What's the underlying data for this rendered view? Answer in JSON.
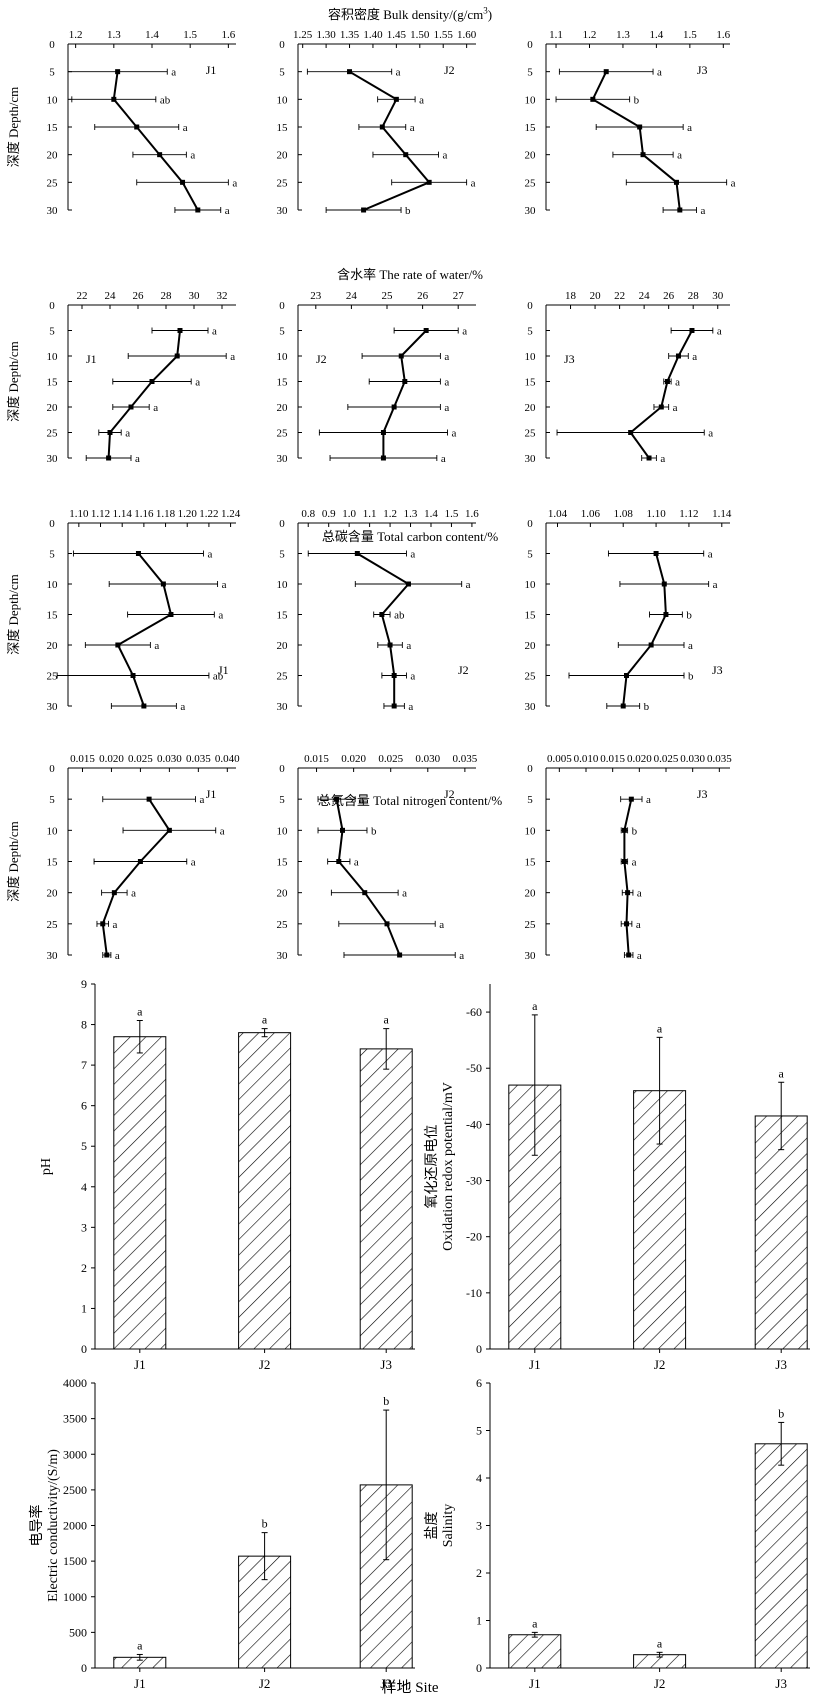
{
  "footer_xlabel": "样地 Site",
  "chart_data": [
    {
      "id": "row1",
      "type": "line",
      "orientation": "depth-profile",
      "title": "容积密度 Bulk density/(g/cm",
      "title_sup": "3",
      "title_tail": ")",
      "ylabel": "深度 Depth/cm",
      "ylim": [
        0,
        30
      ],
      "yticks": [
        0,
        5,
        10,
        15,
        20,
        25,
        30
      ],
      "panels": [
        {
          "site": "J1",
          "xlim": [
            1.18,
            1.62
          ],
          "xticks": [
            "1.2",
            "1.3",
            "1.4",
            "1.5",
            "1.6"
          ],
          "xtick_values": [
            1.2,
            1.3,
            1.4,
            1.5,
            1.6
          ],
          "points": [
            {
              "depth": 5,
              "x": 1.31,
              "err": 0.13,
              "letter": "a"
            },
            {
              "depth": 10,
              "x": 1.3,
              "err": 0.11,
              "letter": "ab"
            },
            {
              "depth": 15,
              "x": 1.36,
              "err": 0.11,
              "letter": "a"
            },
            {
              "depth": 20,
              "x": 1.42,
              "err": 0.07,
              "letter": "a"
            },
            {
              "depth": 25,
              "x": 1.48,
              "err": 0.12,
              "letter": "a"
            },
            {
              "depth": 30,
              "x": 1.52,
              "err": 0.06,
              "letter": "a"
            }
          ]
        },
        {
          "site": "J2",
          "xlim": [
            1.24,
            1.62
          ],
          "xticks": [
            "1.25",
            "1.30",
            "1.35",
            "1.40",
            "1.45",
            "1.50",
            "1.55",
            "1.60"
          ],
          "xtick_values": [
            1.25,
            1.3,
            1.35,
            1.4,
            1.45,
            1.5,
            1.55,
            1.6
          ],
          "points": [
            {
              "depth": 5,
              "x": 1.35,
              "err": 0.09,
              "letter": "a"
            },
            {
              "depth": 10,
              "x": 1.45,
              "err": 0.04,
              "letter": "a"
            },
            {
              "depth": 15,
              "x": 1.42,
              "err": 0.05,
              "letter": "a"
            },
            {
              "depth": 20,
              "x": 1.47,
              "err": 0.07,
              "letter": "a"
            },
            {
              "depth": 25,
              "x": 1.52,
              "err": 0.08,
              "letter": "a"
            },
            {
              "depth": 30,
              "x": 1.38,
              "err": 0.08,
              "letter": "b"
            }
          ]
        },
        {
          "site": "J3",
          "xlim": [
            1.07,
            1.62
          ],
          "xticks": [
            "1.1",
            "1.2",
            "1.3",
            "1.4",
            "1.5",
            "1.6"
          ],
          "xtick_values": [
            1.1,
            1.2,
            1.3,
            1.4,
            1.5,
            1.6
          ],
          "points": [
            {
              "depth": 5,
              "x": 1.25,
              "err": 0.14,
              "letter": "a"
            },
            {
              "depth": 10,
              "x": 1.21,
              "err": 0.11,
              "letter": "b"
            },
            {
              "depth": 15,
              "x": 1.35,
              "err": 0.13,
              "letter": "a"
            },
            {
              "depth": 20,
              "x": 1.36,
              "err": 0.09,
              "letter": "a"
            },
            {
              "depth": 25,
              "x": 1.46,
              "err": 0.15,
              "letter": "a"
            },
            {
              "depth": 30,
              "x": 1.47,
              "err": 0.05,
              "letter": "a"
            }
          ]
        }
      ]
    },
    {
      "id": "row2",
      "type": "line",
      "orientation": "depth-profile",
      "title": "含水率 The rate of water/%",
      "ylabel": "深度 Depth/cm",
      "ylim": [
        0,
        30
      ],
      "yticks": [
        0,
        5,
        10,
        15,
        20,
        25,
        30
      ],
      "panels": [
        {
          "site": "J1",
          "xlim": [
            21,
            33
          ],
          "xticks": [
            "22",
            "24",
            "26",
            "28",
            "30",
            "32"
          ],
          "xtick_values": [
            22,
            24,
            26,
            28,
            30,
            32
          ],
          "points": [
            {
              "depth": 5,
              "x": 29.0,
              "err": 2.0,
              "letter": "a"
            },
            {
              "depth": 10,
              "x": 28.8,
              "err": 3.5,
              "letter": "a"
            },
            {
              "depth": 15,
              "x": 27.0,
              "err": 2.8,
              "letter": "a"
            },
            {
              "depth": 20,
              "x": 25.5,
              "err": 1.3,
              "letter": "a"
            },
            {
              "depth": 25,
              "x": 24.0,
              "err": 0.8,
              "letter": "a"
            },
            {
              "depth": 30,
              "x": 23.9,
              "err": 1.6,
              "letter": "a"
            }
          ]
        },
        {
          "site": "J2",
          "xlim": [
            22.5,
            27.5
          ],
          "xticks": [
            "23",
            "24",
            "25",
            "26",
            "27"
          ],
          "xtick_values": [
            23,
            24,
            25,
            26,
            27
          ],
          "points": [
            {
              "depth": 5,
              "x": 26.1,
              "err": 0.9,
              "letter": "a"
            },
            {
              "depth": 10,
              "x": 25.4,
              "err": 1.1,
              "letter": "a"
            },
            {
              "depth": 15,
              "x": 25.5,
              "err": 1.0,
              "letter": "a"
            },
            {
              "depth": 20,
              "x": 25.2,
              "err": 1.3,
              "letter": "a"
            },
            {
              "depth": 25,
              "x": 24.9,
              "err": 1.8,
              "letter": "a"
            },
            {
              "depth": 30,
              "x": 24.9,
              "err": 1.5,
              "letter": "a"
            }
          ]
        },
        {
          "site": "J3",
          "xlim": [
            16,
            31
          ],
          "xticks": [
            "18",
            "20",
            "22",
            "24",
            "26",
            "28",
            "30"
          ],
          "xtick_values": [
            18,
            20,
            22,
            24,
            26,
            28,
            30
          ],
          "points": [
            {
              "depth": 5,
              "x": 27.9,
              "err": 1.7,
              "letter": "a"
            },
            {
              "depth": 10,
              "x": 26.8,
              "err": 0.8,
              "letter": "a"
            },
            {
              "depth": 15,
              "x": 25.9,
              "err": 0.3,
              "letter": "a"
            },
            {
              "depth": 20,
              "x": 25.4,
              "err": 0.6,
              "letter": "a"
            },
            {
              "depth": 25,
              "x": 22.9,
              "err": 6.0,
              "letter": "a"
            },
            {
              "depth": 30,
              "x": 24.4,
              "err": 0.6,
              "letter": "a"
            }
          ]
        }
      ]
    },
    {
      "id": "row3",
      "type": "line",
      "orientation": "depth-profile",
      "title": "总碳含量 Total carbon content/%",
      "ylabel": "深度 Depth/cm",
      "ylim": [
        0,
        30
      ],
      "yticks": [
        0,
        5,
        10,
        15,
        20,
        25,
        30
      ],
      "panels": [
        {
          "site": "J1",
          "xlim": [
            1.09,
            1.245
          ],
          "xticks": [
            "1.10",
            "1.12",
            "1.14",
            "1.16",
            "1.18",
            "1.20",
            "1.22",
            "1.24"
          ],
          "xtick_values": [
            1.1,
            1.12,
            1.14,
            1.16,
            1.18,
            1.2,
            1.22,
            1.24
          ],
          "points": [
            {
              "depth": 5,
              "x": 1.155,
              "err": 0.06,
              "letter": "a"
            },
            {
              "depth": 10,
              "x": 1.178,
              "err": 0.05,
              "letter": "a"
            },
            {
              "depth": 15,
              "x": 1.185,
              "err": 0.04,
              "letter": "a"
            },
            {
              "depth": 20,
              "x": 1.136,
              "err": 0.03,
              "letter": "a"
            },
            {
              "depth": 25,
              "x": 1.15,
              "err": 0.07,
              "letter": "ab"
            },
            {
              "depth": 30,
              "x": 1.16,
              "err": 0.03,
              "letter": "a"
            }
          ]
        },
        {
          "site": "J2",
          "xlim": [
            0.75,
            1.62
          ],
          "xticks": [
            "0.8",
            "0.9",
            "1.0",
            "1.1",
            "1.2",
            "1.3",
            "1.4",
            "1.5",
            "1.6"
          ],
          "xtick_values": [
            0.8,
            0.9,
            1.0,
            1.1,
            1.2,
            1.3,
            1.4,
            1.5,
            1.6
          ],
          "points": [
            {
              "depth": 5,
              "x": 1.04,
              "err": 0.24,
              "letter": "a"
            },
            {
              "depth": 10,
              "x": 1.29,
              "err": 0.26,
              "letter": "a"
            },
            {
              "depth": 15,
              "x": 1.16,
              "err": 0.04,
              "letter": "ab"
            },
            {
              "depth": 20,
              "x": 1.2,
              "err": 0.06,
              "letter": "a"
            },
            {
              "depth": 25,
              "x": 1.22,
              "err": 0.06,
              "letter": "a"
            },
            {
              "depth": 30,
              "x": 1.22,
              "err": 0.05,
              "letter": "a"
            }
          ]
        },
        {
          "site": "J3",
          "xlim": [
            1.033,
            1.145
          ],
          "xticks": [
            "1.04",
            "1.06",
            "1.08",
            "1.10",
            "1.12",
            "1.14"
          ],
          "xtick_values": [
            1.04,
            1.06,
            1.08,
            1.1,
            1.12,
            1.14
          ],
          "points": [
            {
              "depth": 5,
              "x": 1.1,
              "err": 0.029,
              "letter": "a"
            },
            {
              "depth": 10,
              "x": 1.105,
              "err": 0.027,
              "letter": "a"
            },
            {
              "depth": 15,
              "x": 1.106,
              "err": 0.01,
              "letter": "b"
            },
            {
              "depth": 20,
              "x": 1.097,
              "err": 0.02,
              "letter": "a"
            },
            {
              "depth": 25,
              "x": 1.082,
              "err": 0.035,
              "letter": "b"
            },
            {
              "depth": 30,
              "x": 1.08,
              "err": 0.01,
              "letter": "b"
            }
          ]
        }
      ]
    },
    {
      "id": "row4",
      "type": "line",
      "orientation": "depth-profile",
      "title": "总氮含量 Total nitrogen content/%",
      "ylabel": "深度 Depth/cm",
      "ylim": [
        0,
        30
      ],
      "yticks": [
        0,
        5,
        10,
        15,
        20,
        25,
        30
      ],
      "panels": [
        {
          "site": "J1",
          "xlim": [
            0.0125,
            0.0415
          ],
          "xticks": [
            "0.015",
            "0.020",
            "0.025",
            "0.030",
            "0.035",
            "0.040"
          ],
          "xtick_values": [
            0.015,
            0.02,
            0.025,
            0.03,
            0.035,
            0.04
          ],
          "points": [
            {
              "depth": 5,
              "x": 0.0265,
              "err": 0.008,
              "letter": "a"
            },
            {
              "depth": 10,
              "x": 0.03,
              "err": 0.008,
              "letter": "a"
            },
            {
              "depth": 15,
              "x": 0.025,
              "err": 0.008,
              "letter": "a"
            },
            {
              "depth": 20,
              "x": 0.0205,
              "err": 0.0022,
              "letter": "a"
            },
            {
              "depth": 25,
              "x": 0.0185,
              "err": 0.001,
              "letter": "a"
            },
            {
              "depth": 30,
              "x": 0.0192,
              "err": 0.0007,
              "letter": "a"
            }
          ]
        },
        {
          "site": "J2",
          "xlim": [
            0.0125,
            0.0365
          ],
          "xticks": [
            "0.015",
            "0.020",
            "0.025",
            "0.030",
            "0.035"
          ],
          "xtick_values": [
            0.015,
            0.02,
            0.025,
            0.03,
            0.035
          ],
          "points": [
            {
              "depth": 5,
              "x": 0.0177,
              "err": 0.0025,
              "letter": "a"
            },
            {
              "depth": 10,
              "x": 0.0185,
              "err": 0.0033,
              "letter": "b"
            },
            {
              "depth": 15,
              "x": 0.018,
              "err": 0.0015,
              "letter": "a"
            },
            {
              "depth": 20,
              "x": 0.0215,
              "err": 0.0045,
              "letter": "a"
            },
            {
              "depth": 25,
              "x": 0.0245,
              "err": 0.0065,
              "letter": "a"
            },
            {
              "depth": 30,
              "x": 0.0262,
              "err": 0.0075,
              "letter": "a"
            }
          ]
        },
        {
          "site": "J3",
          "xlim": [
            0.0025,
            0.037
          ],
          "xticks": [
            "0.005",
            "0.010",
            "0.015",
            "0.020",
            "0.025",
            "0.030",
            "0.035"
          ],
          "xtick_values": [
            0.005,
            0.01,
            0.015,
            0.02,
            0.025,
            0.03,
            0.035
          ],
          "points": [
            {
              "depth": 5,
              "x": 0.0185,
              "err": 0.002,
              "letter": "a"
            },
            {
              "depth": 10,
              "x": 0.0172,
              "err": 0.0006,
              "letter": "b"
            },
            {
              "depth": 15,
              "x": 0.0172,
              "err": 0.0006,
              "letter": "a"
            },
            {
              "depth": 20,
              "x": 0.0178,
              "err": 0.001,
              "letter": "a"
            },
            {
              "depth": 25,
              "x": 0.0176,
              "err": 0.001,
              "letter": "a"
            },
            {
              "depth": 30,
              "x": 0.018,
              "err": 0.0008,
              "letter": "a"
            }
          ]
        }
      ]
    },
    {
      "id": "ph",
      "type": "bar",
      "categories": [
        "J1",
        "J2",
        "J3"
      ],
      "values": [
        7.7,
        7.8,
        7.4
      ],
      "errors": [
        0.4,
        0.1,
        0.5
      ],
      "letters": [
        "a",
        "a",
        "a"
      ],
      "ylabel": "pH",
      "ylim": [
        0,
        9
      ],
      "yticks": [
        "0",
        "1",
        "2",
        "3",
        "4",
        "5",
        "6",
        "7",
        "8",
        "9"
      ],
      "ytick_values": [
        0,
        1,
        2,
        3,
        4,
        5,
        6,
        7,
        8,
        9
      ]
    },
    {
      "id": "orp",
      "type": "bar",
      "categories": [
        "J1",
        "J2",
        "J3"
      ],
      "values": [
        -47,
        -46,
        -41.5
      ],
      "errors": [
        12.5,
        9.5,
        6
      ],
      "letters": [
        "a",
        "a",
        "a"
      ],
      "ylabel_cn": "氧化还原电位",
      "ylabel_en": "Oxidation redox potential/mV",
      "ylim": [
        0,
        -65
      ],
      "yticks": [
        "0",
        "-10",
        "-20",
        "-30",
        "-40",
        "-50",
        "-60"
      ],
      "ytick_values": [
        0,
        -10,
        -20,
        -30,
        -40,
        -50,
        -60
      ]
    },
    {
      "id": "ec",
      "type": "bar",
      "categories": [
        "J1",
        "J2",
        "J3"
      ],
      "values": [
        150,
        1570,
        2570
      ],
      "errors": [
        40,
        330,
        1050
      ],
      "letters": [
        "a",
        "b",
        "b"
      ],
      "ylabel_cn": "电导率",
      "ylabel_en": "Electric conductivity/(S/m)",
      "ylim": [
        0,
        4000
      ],
      "yticks": [
        "0",
        "500",
        "1000",
        "1500",
        "2000",
        "2500",
        "3000",
        "3500",
        "4000"
      ],
      "ytick_values": [
        0,
        500,
        1000,
        1500,
        2000,
        2500,
        3000,
        3500,
        4000
      ]
    },
    {
      "id": "sal",
      "type": "bar",
      "categories": [
        "J1",
        "J2",
        "J3"
      ],
      "values": [
        0.7,
        0.28,
        4.72
      ],
      "errors": [
        0.05,
        0.05,
        0.45
      ],
      "letters": [
        "a",
        "a",
        "b"
      ],
      "ylabel_cn": "盐度",
      "ylabel_en": "Salinity",
      "ylim": [
        0,
        6
      ],
      "yticks": [
        "0",
        "1",
        "2",
        "3",
        "4",
        "5",
        "6"
      ],
      "ytick_values": [
        0,
        1,
        2,
        3,
        4,
        5,
        6
      ]
    }
  ]
}
